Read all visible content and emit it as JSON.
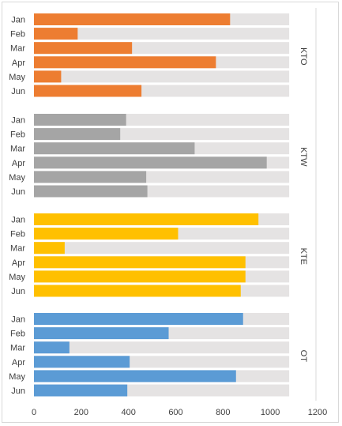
{
  "chart_data": {
    "type": "bar",
    "orientation": "horizontal",
    "style": "progress bars over a light gray background track extending to the axis maximum",
    "categories": [
      "Jan",
      "Feb",
      "Mar",
      "Apr",
      "May",
      "Jun"
    ],
    "groups": [
      {
        "name": "KTO",
        "color": "#ed7d31",
        "values": [
          830,
          185,
          415,
          770,
          115,
          455
        ]
      },
      {
        "name": "KTW",
        "color": "#a5a5a5",
        "values": [
          390,
          365,
          680,
          985,
          475,
          480
        ]
      },
      {
        "name": "KTE",
        "color": "#ffc000",
        "values": [
          950,
          610,
          130,
          895,
          895,
          875
        ]
      },
      {
        "name": "OT",
        "color": "#5b9bd5",
        "values": [
          885,
          570,
          150,
          405,
          855,
          395
        ]
      }
    ],
    "track_max": 1080,
    "track_color": "#e5e3e3",
    "xlim": [
      0,
      1200
    ],
    "xticks": [
      "0",
      "200",
      "400",
      "600",
      "800",
      "1000",
      "1200"
    ],
    "group_labels_rotated": true,
    "legend": "none",
    "grid": false
  }
}
